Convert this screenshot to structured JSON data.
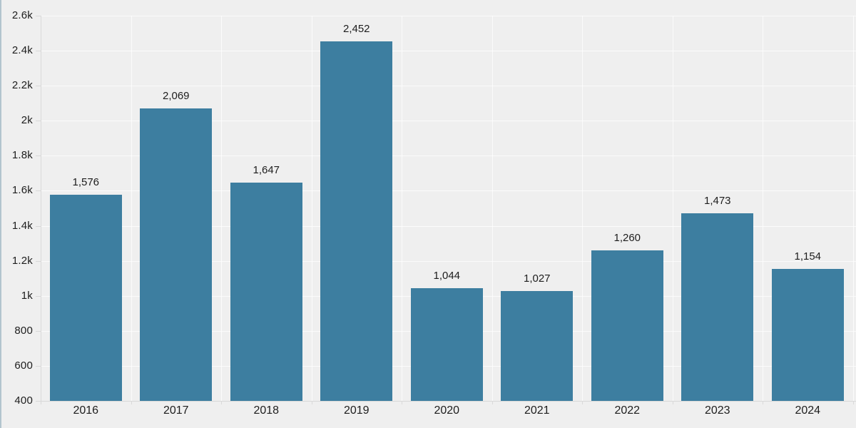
{
  "chart_data": {
    "type": "bar",
    "categories": [
      "2016",
      "2017",
      "2018",
      "2019",
      "2020",
      "2021",
      "2022",
      "2023",
      "2024"
    ],
    "values": [
      1576,
      2069,
      1647,
      2452,
      1044,
      1027,
      1260,
      1473,
      1154
    ],
    "value_labels": [
      "1,576",
      "2,069",
      "1,647",
      "2,452",
      "1,044",
      "1,027",
      "1,260",
      "1,473",
      "1,154"
    ],
    "title": "",
    "xlabel": "",
    "ylabel": "",
    "ylim": [
      400,
      2600
    ],
    "y_ticks": [
      {
        "value": 400,
        "label": "400"
      },
      {
        "value": 600,
        "label": "600"
      },
      {
        "value": 800,
        "label": "800"
      },
      {
        "value": 1000,
        "label": "1k"
      },
      {
        "value": 1200,
        "label": "1.2k"
      },
      {
        "value": 1400,
        "label": "1.4k"
      },
      {
        "value": 1600,
        "label": "1.6k"
      },
      {
        "value": 1800,
        "label": "1.8k"
      },
      {
        "value": 2000,
        "label": "2k"
      },
      {
        "value": 2200,
        "label": "2.2k"
      },
      {
        "value": 2400,
        "label": "2.4k"
      },
      {
        "value": 2600,
        "label": "2.6k"
      }
    ],
    "grid": true,
    "legend": "none",
    "colors": {
      "bar": "#3d7ea0",
      "background": "#efefef",
      "text": "#1d1d1d",
      "gridline": "rgba(255,255,255,0.75)",
      "axis": "#d9d9d9",
      "window_edge": "#b2c4ce"
    }
  }
}
